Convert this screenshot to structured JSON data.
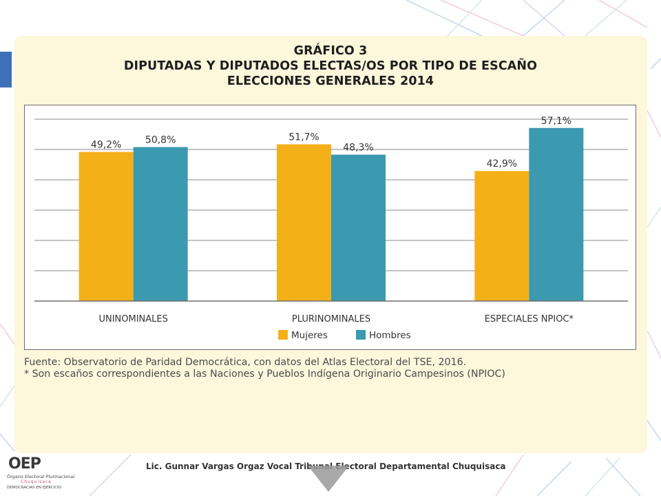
{
  "title": {
    "line1": "GRÁFICO 3",
    "line2": "DIPUTADAS Y DIPUTADOS ELECTAS/OS POR TIPO DE ESCAÑO",
    "line3": "ELECCIONES GENERALES 2014"
  },
  "chart_data": {
    "type": "bar",
    "categories": [
      "UNINOMINALES",
      "PLURINOMINALES",
      "ESPECIALES NPIOC*"
    ],
    "series": [
      {
        "name": "Mujeres",
        "values": [
          49.2,
          51.7,
          42.9
        ],
        "labels": [
          "49,2%",
          "51,7%",
          "42,9%"
        ],
        "color": "#f4b019"
      },
      {
        "name": "Hombres",
        "values": [
          50.8,
          48.3,
          57.1
        ],
        "labels": [
          "50,8%",
          "48,3%",
          "57,1%"
        ],
        "color": "#3b99b0"
      }
    ],
    "ylim": [
      0,
      60
    ],
    "grid": true,
    "legend_position": "bottom-center"
  },
  "source": {
    "line1": "Fuente: Observatorio de Paridad Democrática, con datos del Atlas Electoral del TSE, 2016.",
    "line2": "* Son escaños correspondientes a las Naciones y Pueblos Indígena Originario Campesinos (NPIOC)"
  },
  "footer": {
    "logo_mark": "OEP",
    "logo_line1": "Órgano Electoral Plurinacional",
    "logo_line2": "Chuquisaca",
    "logo_line3": "DEMOCRACIAS EN EJERCICIO",
    "text": "Lic. Gunnar Vargas Orgaz Vocal Tribunal Electoral Departamental Chuquisaca"
  },
  "colors": {
    "card": "#fdf7dc",
    "mujeres": "#f4b019",
    "hombres": "#3b99b0"
  }
}
